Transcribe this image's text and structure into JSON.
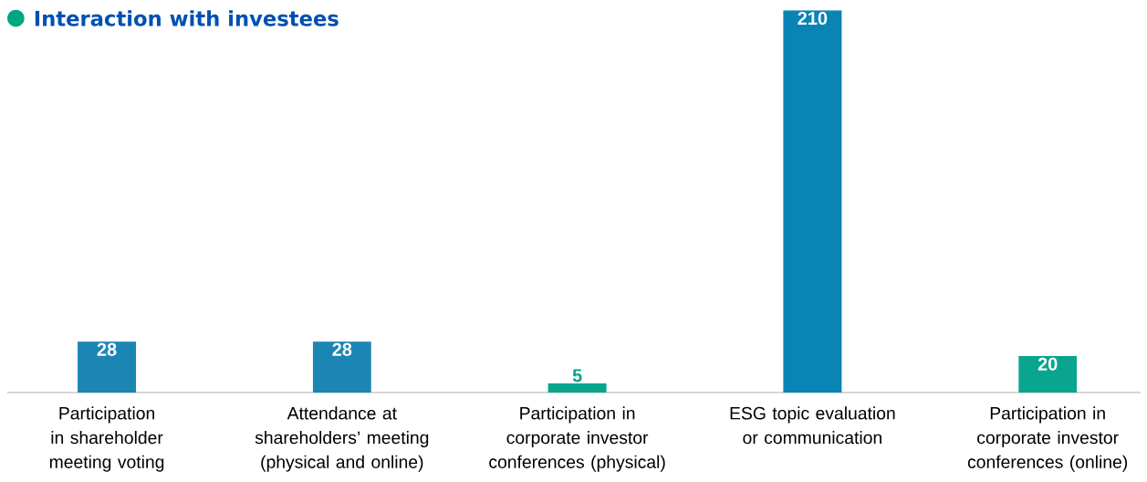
{
  "chart_data": {
    "type": "bar",
    "title": "Interaction with investees",
    "categories": [
      "Participation in shareholder meeting voting",
      "Attendance at shareholders’ meeting (physical and online)",
      "Participation in corporate investor conferences (physical)",
      "ESG topic evaluation or communication",
      "Participation in corporate investor conferences (online)"
    ],
    "values": [
      28,
      28,
      5,
      210,
      20
    ],
    "colors": [
      "#1b86b4",
      "#1b86b4",
      "#0aa58e",
      "#0a84b4",
      "#0aa58e"
    ],
    "data_labels": true
  }
}
